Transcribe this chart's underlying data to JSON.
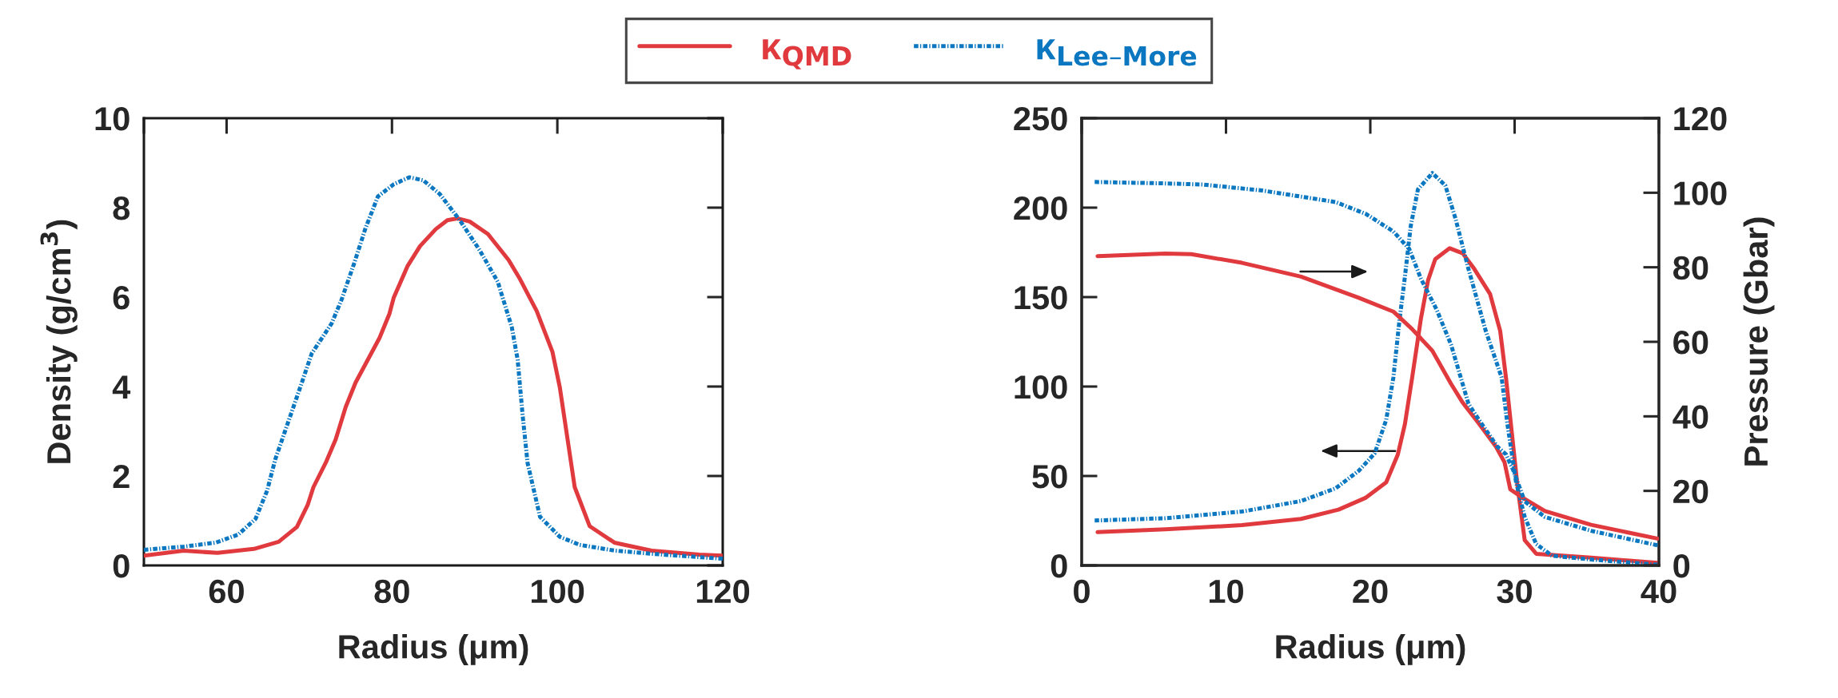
{
  "chart_data": [
    {
      "type": "line",
      "xlabel": "Radius (μm)",
      "ylabel": "Density (g/cm$^{3}$)",
      "xlim": [
        50,
        120
      ],
      "xticks": [
        {
          "value": 50,
          "label": null
        },
        60,
        80,
        100,
        120
      ],
      "ylim": [
        0,
        10
      ],
      "yticks": [
        0,
        2,
        4,
        6,
        8,
        10
      ],
      "legend": "top",
      "grid": false,
      "series": [
        {
          "name": "κ$_{QMD}$",
          "color": "#e0393e",
          "line_style": "solid",
          "x": [
            50,
            54.8,
            58.9,
            63.3,
            66.3,
            68.5,
            69.8,
            70.5,
            72.0,
            73.2,
            74.4,
            75.6,
            78.5,
            79.7,
            80.2,
            81.9,
            83.4,
            85.3,
            86.7,
            87.9,
            89.4,
            91.6,
            94.1,
            95.4,
            97.5,
            99.4,
            100.3,
            102.1,
            103.9,
            106.9,
            111.4,
            117.2,
            120
          ],
          "values": [
            0.22,
            0.33,
            0.28,
            0.37,
            0.53,
            0.86,
            1.35,
            1.75,
            2.3,
            2.82,
            3.54,
            4.09,
            5.09,
            5.63,
            5.98,
            6.7,
            7.14,
            7.52,
            7.72,
            7.76,
            7.69,
            7.41,
            6.83,
            6.43,
            5.69,
            4.78,
            3.98,
            1.75,
            0.88,
            0.51,
            0.33,
            0.24,
            0.22
          ]
        },
        {
          "name": "κ$_{Lee–More}$",
          "color": "#0a77c0",
          "line_style": "dashdot",
          "x": [
            50,
            54.8,
            58.7,
            61.4,
            63.5,
            64.9,
            65.9,
            67.4,
            68.9,
            70.3,
            72.7,
            73.9,
            75.4,
            76.8,
            78.3,
            80.2,
            82.1,
            83.8,
            85.8,
            88.2,
            90.6,
            92.8,
            94.5,
            95.2,
            95.8,
            96.4,
            97.9,
            100.3,
            102.7,
            107.0,
            111.4,
            120
          ],
          "values": [
            0.35,
            0.42,
            0.51,
            0.69,
            1.04,
            1.67,
            2.38,
            3.18,
            3.98,
            4.74,
            5.41,
            5.94,
            6.74,
            7.54,
            8.25,
            8.52,
            8.68,
            8.61,
            8.3,
            7.72,
            7.05,
            6.34,
            5.32,
            4.6,
            3.36,
            2.29,
            1.09,
            0.64,
            0.46,
            0.33,
            0.26,
            0.15
          ]
        }
      ]
    },
    {
      "type": "line",
      "xlabel": "Radius (μm)",
      "y2label": "Pressure (Gbar)",
      "xlim": [
        0,
        40
      ],
      "xticks": [
        0,
        10,
        20,
        30,
        40
      ],
      "ylim": [
        0,
        250
      ],
      "yticks": [
        0,
        50,
        100,
        150,
        200,
        250
      ],
      "y2lim": [
        0,
        120
      ],
      "y2ticks": [
        0,
        20,
        40,
        60,
        80,
        100,
        120
      ],
      "grid": false,
      "series": [
        {
          "color": "#e0393e",
          "line_style": "solid",
          "x": [
            1.1,
            5.8,
            11.1,
            15.2,
            17.8,
            19.7,
            21.1,
            21.9,
            22.4,
            22.9,
            23.5,
            24.0,
            24.5,
            25.5,
            26.4,
            27.2,
            28.3,
            29.0,
            29.4,
            29.8,
            30.2,
            30.7,
            31.5,
            35.3,
            39.9
          ],
          "values": [
            18.6,
            20.2,
            22.5,
            26.0,
            31.2,
            37.9,
            46.4,
            61.8,
            79.1,
            105,
            137.6,
            159.3,
            171.2,
            177.3,
            174.5,
            165.8,
            151.7,
            131.1,
            105.1,
            74.7,
            44.4,
            14.1,
            6.5,
            4.3,
            1.5
          ]
        },
        {
          "color": "#0a77c0",
          "line_style": "dashdot",
          "x": [
            0.9,
            5.8,
            11.1,
            15.2,
            17.6,
            19.2,
            20.3,
            21.1,
            21.6,
            22.0,
            22.4,
            22.8,
            23.3,
            24.3,
            25.2,
            25.9,
            26.8,
            28.0,
            29.1,
            29.5,
            30.1,
            30.7,
            31.5,
            32.6,
            35.3,
            39.9
          ],
          "values": [
            25.1,
            26.4,
            30.1,
            36.0,
            43.1,
            52.9,
            62.6,
            81.3,
            105.1,
            135.5,
            161.5,
            189.6,
            210.2,
            219.3,
            212.4,
            194,
            165.8,
            131.1,
            105.1,
            79.1,
            46.6,
            27.1,
            11.9,
            5.4,
            3.3,
            0.4
          ]
        },
        {
          "color": "#e0393e",
          "line_style": "solid",
          "axis": "y2",
          "x": [
            1.1,
            5.8,
            7.6,
            11.1,
            15.2,
            19.2,
            21.6,
            22.9,
            24.3,
            25.6,
            26.4,
            27.5,
            28.7,
            29.3,
            29.7,
            30.5,
            32.1,
            35.3,
            39.9
          ],
          "values": [
            83.0,
            83.7,
            83.5,
            81.2,
            77.5,
            71.8,
            68.1,
            63.4,
            57.6,
            48.7,
            43.7,
            38.2,
            31.9,
            27.7,
            20.4,
            18.3,
            14.6,
            10.9,
            7.2
          ]
        },
        {
          "color": "#0a77c0",
          "line_style": "dashdot",
          "axis": "y2",
          "x": [
            0.9,
            5.8,
            8.4,
            12.5,
            17.6,
            19.7,
            21.6,
            22.7,
            23.5,
            24.6,
            25.6,
            26.8,
            27.5,
            28.8,
            29.4,
            29.9,
            30.7,
            32.1,
            35.3,
            39.9
          ],
          "values": [
            102.9,
            102.5,
            102.2,
            100.6,
            97.5,
            94.3,
            89.6,
            84.9,
            77.0,
            68.6,
            59.2,
            43.4,
            39.2,
            31.9,
            29.8,
            25.6,
            17.2,
            13.0,
            9.3,
            5.4
          ]
        }
      ]
    }
  ]
}
